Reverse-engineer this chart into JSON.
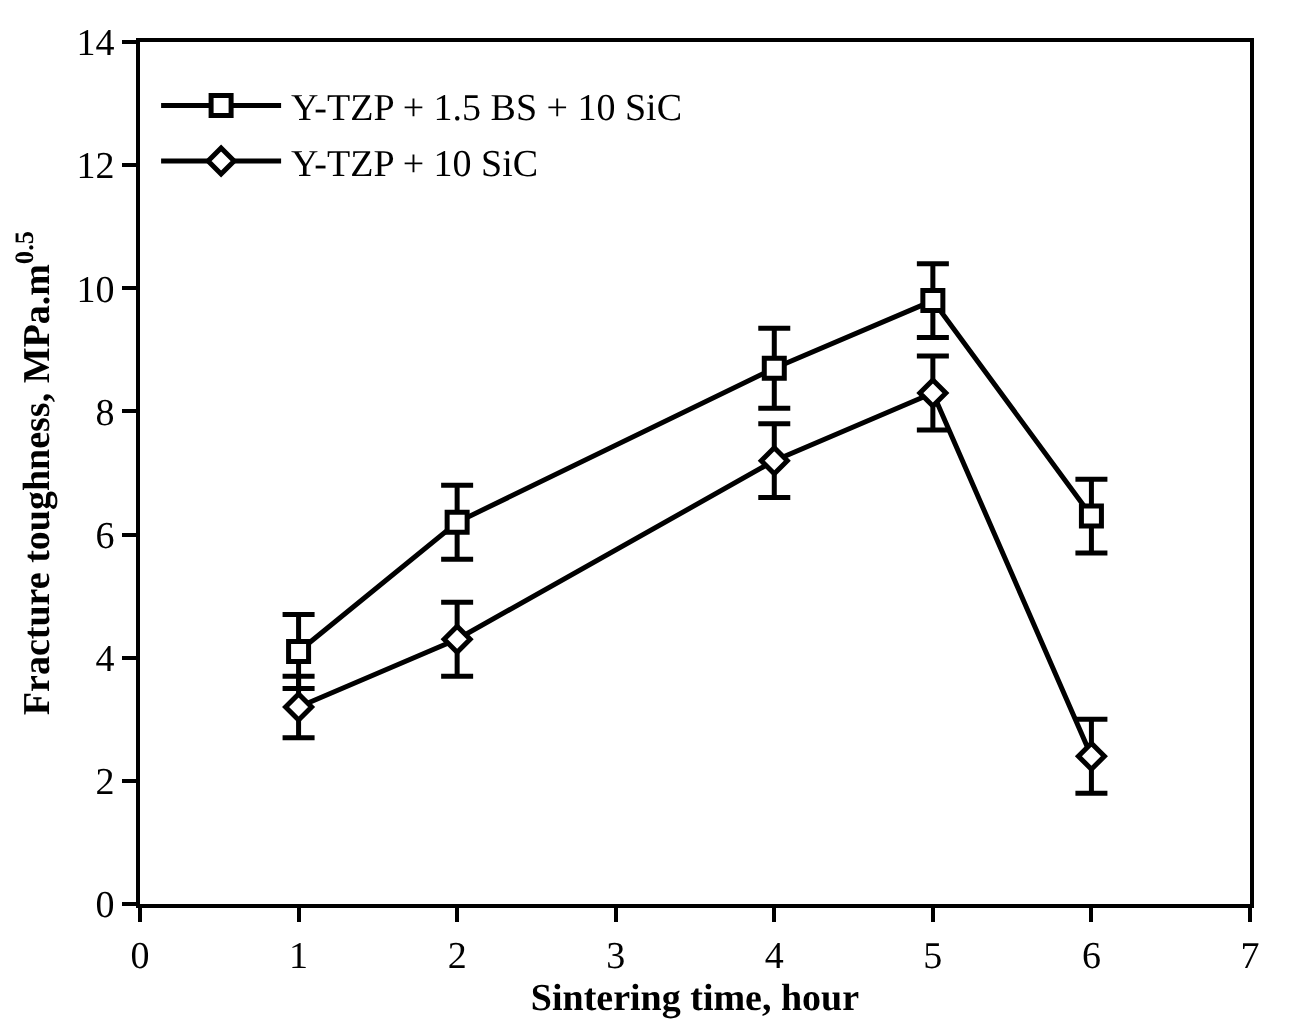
{
  "chart_data": {
    "type": "line",
    "xlabel": "Sintering time, hour",
    "ylabel": "Fracture toughness, MPa.m$^{0.5}$",
    "x": [
      1,
      2,
      4,
      5,
      6
    ],
    "series": [
      {
        "name": "Y-TZP + 1.5 BS + 10 SiC",
        "color": "#000000",
        "marker": "square",
        "values": [
          4.1,
          6.2,
          8.7,
          9.8,
          6.3
        ],
        "errors": [
          0.6,
          0.6,
          0.65,
          0.6,
          0.6
        ]
      },
      {
        "name": "Y-TZP + 10 SiC",
        "color": "#000000",
        "marker": "diamond",
        "values": [
          3.2,
          4.3,
          7.2,
          8.3,
          2.4
        ],
        "errors": [
          0.5,
          0.6,
          0.6,
          0.6,
          0.6
        ]
      }
    ],
    "xlim": [
      0,
      7
    ],
    "xticks": [
      0,
      1,
      2,
      3,
      4,
      5,
      6,
      7
    ],
    "ylim": [
      0,
      14
    ],
    "yticks": [
      0,
      2,
      4,
      6,
      8,
      10,
      12,
      14
    ],
    "legend": "top left",
    "line_style": "solid"
  }
}
